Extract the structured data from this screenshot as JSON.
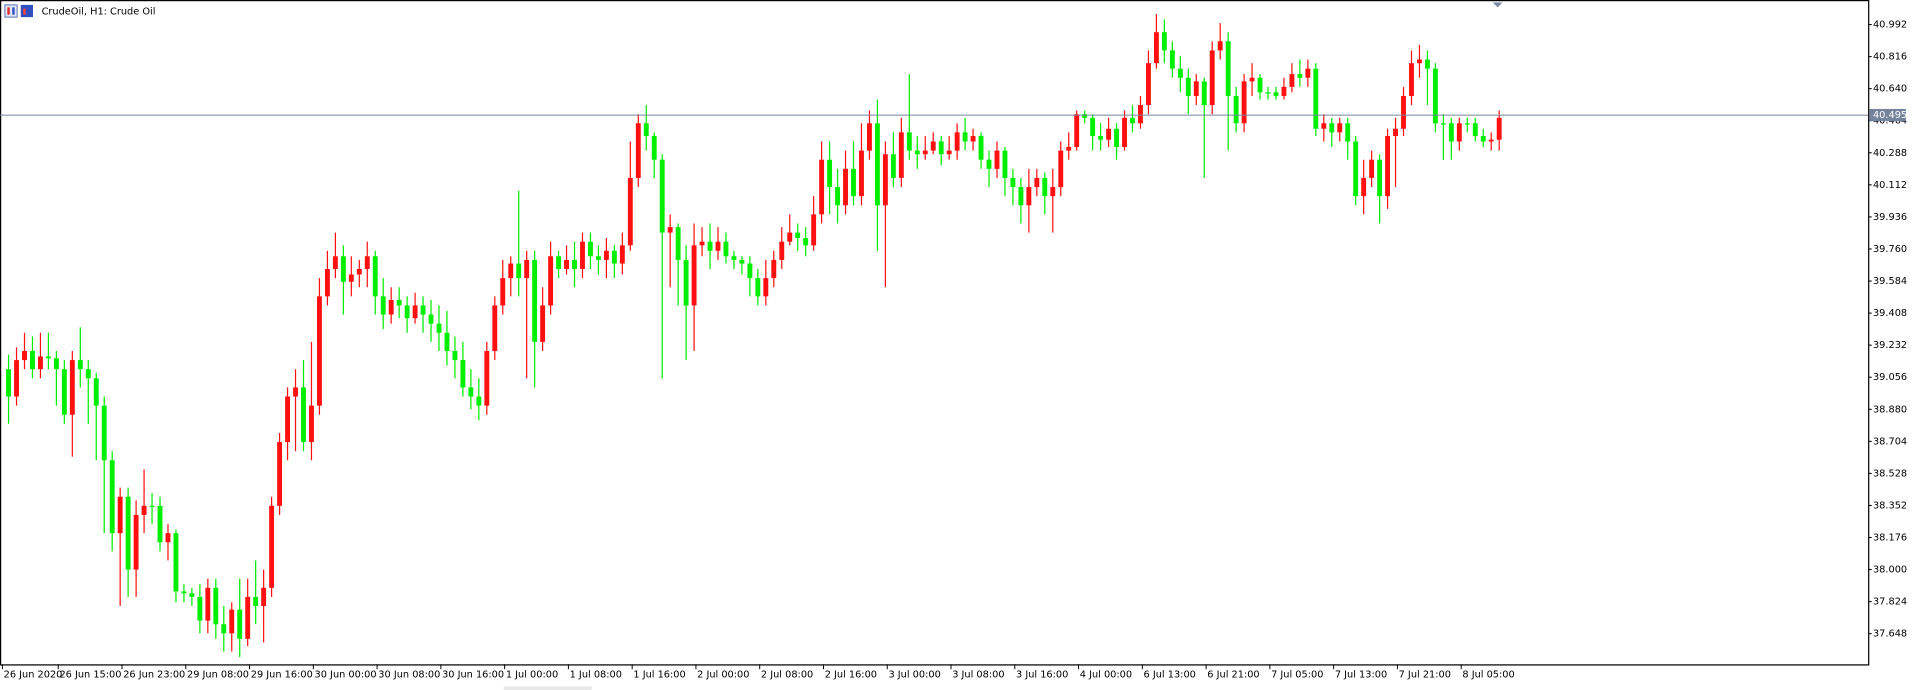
{
  "chart_data": {
    "type": "candlestick",
    "title": "CrudeOil, H1: Crude Oil",
    "up_color": "#ff1010",
    "down_color": "#00ee00",
    "last_price": 40.495,
    "last_price_color": "#74849c",
    "ylim": [
      37.48,
      41.12
    ],
    "yticks": [
      40.992,
      40.816,
      {
        "value": 40.64,
        "label": "40.640"
      },
      40.464,
      40.288,
      40.112,
      39.936,
      {
        "value": 39.76,
        "label": "39.760"
      },
      39.584,
      39.408,
      39.232,
      39.056,
      {
        "value": 38.88,
        "label": "38.880"
      },
      38.704,
      38.528,
      38.352,
      38.176,
      {
        "value": 38,
        "label": "38.000"
      },
      37.824,
      37.648
    ],
    "categories": [
      "26 Jun 2020",
      null,
      null,
      null,
      null,
      null,
      null,
      "26 Jun 15:00",
      null,
      null,
      null,
      null,
      null,
      null,
      null,
      "26 Jun 23:00",
      null,
      null,
      null,
      null,
      null,
      null,
      null,
      "29 Jun 08:00",
      null,
      null,
      null,
      null,
      null,
      null,
      null,
      "29 Jun 16:00",
      null,
      null,
      null,
      null,
      null,
      null,
      null,
      "30 Jun 00:00",
      null,
      null,
      null,
      null,
      null,
      null,
      null,
      "30 Jun 08:00",
      null,
      null,
      null,
      null,
      null,
      null,
      null,
      "30 Jun 16:00",
      null,
      null,
      null,
      null,
      null,
      null,
      null,
      "1 Jul 00:00",
      null,
      null,
      null,
      null,
      null,
      null,
      null,
      "1 Jul 08:00",
      null,
      null,
      null,
      null,
      null,
      null,
      null,
      "1 Jul 16:00",
      null,
      null,
      null,
      null,
      null,
      null,
      null,
      "2 Jul 00:00",
      null,
      null,
      null,
      null,
      null,
      null,
      null,
      "2 Jul 08:00",
      null,
      null,
      null,
      null,
      null,
      null,
      null,
      "2 Jul 16:00",
      null,
      null,
      null,
      null,
      null,
      null,
      null,
      "3 Jul 00:00",
      null,
      null,
      null,
      null,
      null,
      null,
      null,
      "3 Jul 08:00",
      null,
      null,
      null,
      null,
      null,
      null,
      null,
      "3 Jul 16:00",
      null,
      null,
      null,
      null,
      null,
      null,
      null,
      "4 Jul 00:00",
      null,
      null,
      null,
      null,
      null,
      null,
      null,
      "6 Jul 13:00",
      null,
      null,
      null,
      null,
      null,
      null,
      null,
      "6 Jul 21:00",
      null,
      null,
      null,
      null,
      null,
      null,
      null,
      "7 Jul 05:00",
      null,
      null,
      null,
      null,
      null,
      null,
      null,
      "7 Jul 13:00",
      null,
      null,
      null,
      null,
      null,
      null,
      null,
      "7 Jul 21:00",
      null,
      null,
      null,
      null,
      null,
      null,
      null,
      "8 Jul 05:00",
      null,
      null,
      null,
      null
    ],
    "open": [
      39.1,
      38.95,
      39.15,
      39.2,
      39.1,
      39.17,
      39.16,
      39.1,
      38.85,
      39.15,
      39.1,
      39.05,
      38.9,
      38.6,
      38.2,
      38.4,
      38.0,
      38.3,
      38.35,
      38.35,
      38.15,
      38.2,
      37.88,
      37.87,
      37.85,
      37.72,
      37.9,
      37.7,
      37.65,
      37.78,
      37.62,
      37.85,
      37.8,
      37.9,
      38.35,
      38.7,
      38.95,
      39.0,
      38.7,
      38.9,
      39.5,
      39.65,
      39.72,
      39.58,
      39.62,
      39.65,
      39.72,
      39.5,
      39.4,
      39.48,
      39.45,
      39.38,
      39.45,
      39.4,
      39.35,
      39.3,
      39.2,
      39.15,
      39.0,
      38.95,
      38.9,
      39.2,
      39.45,
      39.6,
      39.68,
      39.6,
      39.7,
      39.25,
      39.45,
      39.72,
      39.65,
      39.7,
      39.65,
      39.8,
      39.72,
      39.7,
      39.75,
      39.68,
      39.78,
      40.15,
      40.45,
      40.38,
      40.25,
      39.85,
      39.88,
      39.7,
      39.45,
      39.78,
      39.8,
      39.75,
      39.8,
      39.72,
      39.7,
      39.68,
      39.6,
      39.5,
      39.6,
      39.7,
      39.8,
      39.85,
      39.82,
      39.78,
      39.95,
      40.25,
      40.1,
      40.0,
      40.2,
      40.05,
      40.3,
      40.45,
      40.0,
      40.28,
      40.15,
      40.4,
      40.3,
      40.28,
      40.3,
      40.35,
      40.28,
      40.3,
      40.4,
      40.35,
      40.38,
      40.25,
      40.2,
      40.3,
      40.15,
      40.1,
      40.0,
      40.1,
      40.15,
      40.05,
      40.1,
      40.3,
      40.32,
      40.5,
      40.48,
      40.38,
      40.36,
      40.42,
      40.32,
      40.48,
      40.45,
      40.55,
      40.78,
      40.95,
      40.85,
      40.75,
      40.7,
      40.6,
      40.68,
      40.55,
      40.85,
      40.9,
      40.6,
      40.45,
      40.68,
      40.7,
      40.62,
      40.62,
      40.6,
      40.65,
      40.72,
      40.7,
      40.75,
      40.42,
      40.45,
      40.4,
      40.45,
      40.35,
      40.05,
      40.15,
      40.25,
      40.05,
      40.38,
      40.42,
      40.6,
      40.78,
      40.8,
      40.75,
      40.45,
      40.45,
      40.35,
      40.45,
      40.45,
      40.38,
      40.35,
      40.36
    ],
    "high": [
      39.18,
      39.22,
      39.3,
      39.28,
      39.3,
      39.3,
      39.2,
      39.15,
      39.2,
      39.33,
      39.15,
      39.08,
      38.95,
      38.65,
      38.45,
      38.45,
      38.38,
      38.55,
      38.42,
      38.4,
      38.25,
      38.22,
      37.92,
      37.9,
      37.92,
      37.95,
      37.95,
      37.8,
      37.82,
      37.95,
      37.95,
      38.05,
      38.0,
      38.4,
      38.75,
      39.0,
      39.1,
      39.15,
      39.25,
      39.6,
      39.75,
      39.85,
      39.78,
      39.72,
      39.7,
      39.8,
      39.75,
      39.6,
      39.55,
      39.55,
      39.5,
      39.52,
      39.5,
      39.48,
      39.45,
      39.42,
      39.28,
      39.25,
      39.1,
      39.05,
      39.25,
      39.5,
      39.7,
      39.72,
      40.08,
      39.75,
      39.75,
      39.55,
      39.8,
      39.75,
      39.78,
      39.8,
      39.85,
      39.85,
      39.78,
      39.82,
      39.78,
      39.85,
      40.35,
      40.5,
      40.55,
      40.4,
      40.28,
      39.95,
      39.9,
      39.78,
      39.9,
      39.88,
      39.9,
      39.88,
      39.85,
      39.75,
      39.72,
      39.72,
      39.65,
      39.7,
      39.75,
      39.88,
      39.95,
      39.9,
      39.88,
      40.05,
      40.35,
      40.35,
      40.2,
      40.3,
      40.35,
      40.45,
      40.52,
      40.58,
      40.35,
      40.4,
      40.48,
      40.72,
      40.38,
      40.38,
      40.4,
      40.38,
      40.38,
      40.45,
      40.48,
      40.42,
      40.4,
      40.3,
      40.35,
      40.32,
      40.2,
      40.15,
      40.2,
      40.2,
      40.18,
      40.2,
      40.35,
      40.4,
      40.52,
      40.52,
      40.5,
      40.45,
      40.48,
      40.45,
      40.52,
      40.55,
      40.6,
      40.85,
      41.05,
      41.02,
      40.9,
      40.82,
      40.75,
      40.72,
      40.7,
      40.9,
      41.0,
      40.95,
      40.65,
      40.72,
      40.78,
      40.72,
      40.65,
      40.65,
      40.7,
      40.78,
      40.8,
      40.8,
      40.78,
      40.5,
      40.48,
      40.48,
      40.48,
      40.38,
      40.25,
      40.3,
      40.28,
      40.42,
      40.48,
      40.65,
      40.85,
      40.88,
      40.85,
      40.78,
      40.5,
      40.48,
      40.48,
      40.48,
      40.48,
      40.42,
      40.4,
      40.52
    ],
    "low": [
      38.8,
      38.9,
      39.1,
      39.05,
      39.05,
      39.1,
      38.9,
      38.8,
      38.62,
      39.0,
      38.8,
      38.6,
      38.2,
      38.1,
      37.8,
      37.85,
      37.85,
      38.2,
      38.25,
      38.1,
      38.05,
      37.82,
      37.82,
      37.8,
      37.65,
      37.65,
      37.62,
      37.55,
      37.55,
      37.52,
      37.58,
      37.7,
      37.6,
      37.85,
      38.3,
      38.6,
      38.65,
      38.65,
      38.6,
      38.85,
      39.45,
      39.6,
      39.4,
      39.5,
      39.55,
      39.55,
      39.4,
      39.32,
      39.35,
      39.38,
      39.3,
      39.35,
      39.3,
      39.25,
      39.2,
      39.12,
      39.05,
      38.95,
      38.88,
      38.82,
      38.85,
      39.15,
      39.4,
      39.5,
      39.5,
      39.05,
      39.0,
      39.2,
      39.4,
      39.6,
      39.62,
      39.55,
      39.6,
      39.65,
      39.62,
      39.6,
      39.6,
      39.62,
      39.75,
      40.1,
      40.3,
      40.15,
      39.05,
      39.55,
      39.45,
      39.15,
      39.2,
      39.72,
      39.65,
      39.7,
      39.68,
      39.65,
      39.62,
      39.5,
      39.45,
      39.45,
      39.55,
      39.65,
      39.78,
      39.75,
      39.72,
      39.75,
      39.9,
      39.95,
      39.9,
      39.95,
      40.0,
      40.0,
      40.25,
      39.75,
      39.55,
      40.1,
      40.1,
      40.25,
      40.2,
      40.25,
      40.28,
      40.22,
      40.25,
      40.25,
      40.3,
      40.3,
      40.2,
      40.1,
      40.15,
      40.05,
      40.0,
      39.9,
      39.85,
      40.05,
      39.95,
      39.85,
      40.05,
      40.25,
      40.3,
      40.45,
      40.3,
      40.3,
      40.32,
      40.25,
      40.3,
      40.4,
      40.42,
      40.5,
      40.75,
      40.78,
      40.7,
      40.62,
      40.5,
      40.55,
      40.15,
      40.5,
      40.8,
      40.3,
      40.4,
      40.4,
      40.6,
      40.58,
      40.58,
      40.58,
      40.58,
      40.62,
      40.65,
      40.65,
      40.38,
      40.35,
      40.32,
      40.35,
      40.25,
      40.0,
      39.95,
      40.1,
      39.9,
      39.98,
      40.1,
      40.38,
      40.55,
      40.7,
      40.55,
      40.4,
      40.25,
      40.25,
      40.3,
      40.4,
      40.35,
      40.32,
      40.3,
      40.3
    ],
    "close": [
      38.95,
      39.15,
      39.2,
      39.1,
      39.17,
      39.16,
      39.1,
      38.85,
      39.15,
      39.1,
      39.05,
      38.9,
      38.6,
      38.2,
      38.4,
      38.0,
      38.3,
      38.35,
      38.35,
      38.15,
      38.2,
      37.88,
      37.87,
      37.85,
      37.72,
      37.9,
      37.7,
      37.65,
      37.78,
      37.62,
      37.85,
      37.8,
      37.9,
      38.35,
      38.7,
      38.95,
      39.0,
      38.7,
      38.9,
      39.5,
      39.65,
      39.72,
      39.58,
      39.62,
      39.65,
      39.72,
      39.5,
      39.4,
      39.48,
      39.45,
      39.38,
      39.45,
      39.4,
      39.35,
      39.3,
      39.2,
      39.15,
      39.0,
      38.95,
      38.9,
      39.2,
      39.45,
      39.6,
      39.68,
      39.6,
      39.7,
      39.25,
      39.45,
      39.72,
      39.65,
      39.7,
      39.65,
      39.8,
      39.72,
      39.7,
      39.75,
      39.68,
      39.78,
      40.15,
      40.45,
      40.38,
      40.25,
      39.85,
      39.88,
      39.7,
      39.45,
      39.78,
      39.8,
      39.75,
      39.8,
      39.72,
      39.7,
      39.68,
      39.6,
      39.5,
      39.6,
      39.7,
      39.8,
      39.85,
      39.82,
      39.78,
      39.95,
      40.25,
      40.1,
      40.0,
      40.2,
      40.05,
      40.3,
      40.45,
      40.0,
      40.28,
      40.15,
      40.4,
      40.3,
      40.28,
      40.3,
      40.35,
      40.28,
      40.3,
      40.4,
      40.35,
      40.38,
      40.25,
      40.2,
      40.3,
      40.15,
      40.1,
      40.0,
      40.1,
      40.15,
      40.05,
      40.1,
      40.3,
      40.32,
      40.5,
      40.48,
      40.38,
      40.36,
      40.42,
      40.32,
      40.48,
      40.45,
      40.55,
      40.78,
      40.95,
      40.85,
      40.75,
      40.7,
      40.6,
      40.68,
      40.55,
      40.85,
      40.9,
      40.6,
      40.45,
      40.68,
      40.7,
      40.62,
      40.62,
      40.6,
      40.65,
      40.72,
      40.7,
      40.75,
      40.42,
      40.45,
      40.4,
      40.45,
      40.35,
      40.05,
      40.15,
      40.25,
      40.05,
      40.38,
      40.42,
      40.6,
      40.78,
      40.8,
      40.75,
      40.45,
      40.45,
      40.35,
      40.45,
      40.45,
      40.38,
      40.35,
      40.36,
      40.48
    ]
  }
}
